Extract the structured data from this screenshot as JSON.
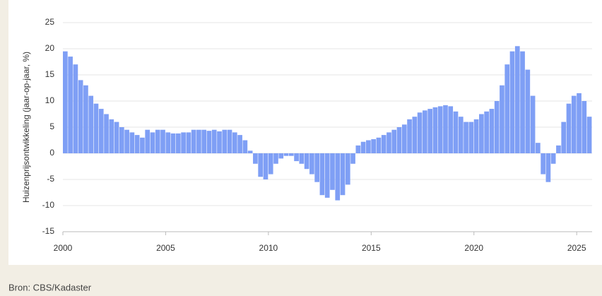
{
  "chart_data": {
    "type": "bar",
    "y_label": "Huizenprijsontwikkeling (jaar-op-jaar, %)",
    "source": "Bron: CBS/Kadaster",
    "color": "#7f9ff5",
    "grid": true,
    "x": [
      2000,
      2000.25,
      2000.5,
      2000.75,
      2001,
      2001.25,
      2001.5,
      2001.75,
      2002,
      2002.25,
      2002.5,
      2002.75,
      2003,
      2003.25,
      2003.5,
      2003.75,
      2004,
      2004.25,
      2004.5,
      2004.75,
      2005,
      2005.25,
      2005.5,
      2005.75,
      2006,
      2006.25,
      2006.5,
      2006.75,
      2007,
      2007.25,
      2007.5,
      2007.75,
      2008,
      2008.25,
      2008.5,
      2008.75,
      2009,
      2009.25,
      2009.5,
      2009.75,
      2010,
      2010.25,
      2010.5,
      2010.75,
      2011,
      2011.25,
      2011.5,
      2011.75,
      2012,
      2012.25,
      2012.5,
      2012.75,
      2013,
      2013.25,
      2013.5,
      2013.75,
      2014,
      2014.25,
      2014.5,
      2014.75,
      2015,
      2015.25,
      2015.5,
      2015.75,
      2016,
      2016.25,
      2016.5,
      2016.75,
      2017,
      2017.25,
      2017.5,
      2017.75,
      2018,
      2018.25,
      2018.5,
      2018.75,
      2019,
      2019.25,
      2019.5,
      2019.75,
      2020,
      2020.25,
      2020.5,
      2020.75,
      2021,
      2021.25,
      2021.5,
      2021.75,
      2022,
      2022.25,
      2022.5,
      2022.75,
      2023,
      2023.25,
      2023.5,
      2023.75,
      2024,
      2024.25,
      2024.5,
      2024.75,
      2025,
      2025.25,
      2025.5
    ],
    "values": [
      19.5,
      18.5,
      17,
      14,
      13,
      11,
      9.5,
      8.5,
      7.5,
      6.5,
      6,
      5,
      4.5,
      4,
      3.5,
      3,
      4.5,
      4,
      4.5,
      4.5,
      4,
      3.8,
      3.8,
      4,
      4,
      4.5,
      4.5,
      4.5,
      4.3,
      4.5,
      4.2,
      4.5,
      4.5,
      4,
      3.5,
      2.5,
      0.5,
      -2,
      -4.5,
      -5,
      -4,
      -2,
      -1,
      -0.5,
      -0.5,
      -1.5,
      -2,
      -3,
      -4,
      -5.5,
      -8,
      -8.5,
      -7,
      -9,
      -8,
      -6,
      -2,
      1.5,
      2.2,
      2.5,
      2.7,
      3,
      3.5,
      4,
      4.5,
      5,
      5.5,
      6.5,
      7,
      7.8,
      8.2,
      8.5,
      8.8,
      9,
      9.2,
      9,
      8,
      7,
      6,
      6,
      6.5,
      7.5,
      8,
      8.5,
      10,
      13,
      17,
      19.5,
      20.5,
      19.5,
      16,
      11,
      2,
      -4,
      -5.5,
      -2,
      1.5,
      6,
      9.5,
      11,
      11.5,
      10,
      7
    ],
    "xlim": [
      2000,
      2025.75
    ],
    "xticks": [
      2000,
      2005,
      2010,
      2015,
      2020,
      2025
    ],
    "ylim": [
      -15,
      25
    ],
    "yticks": [
      -15,
      -10,
      -5,
      0,
      5,
      10,
      15,
      20,
      25
    ]
  }
}
